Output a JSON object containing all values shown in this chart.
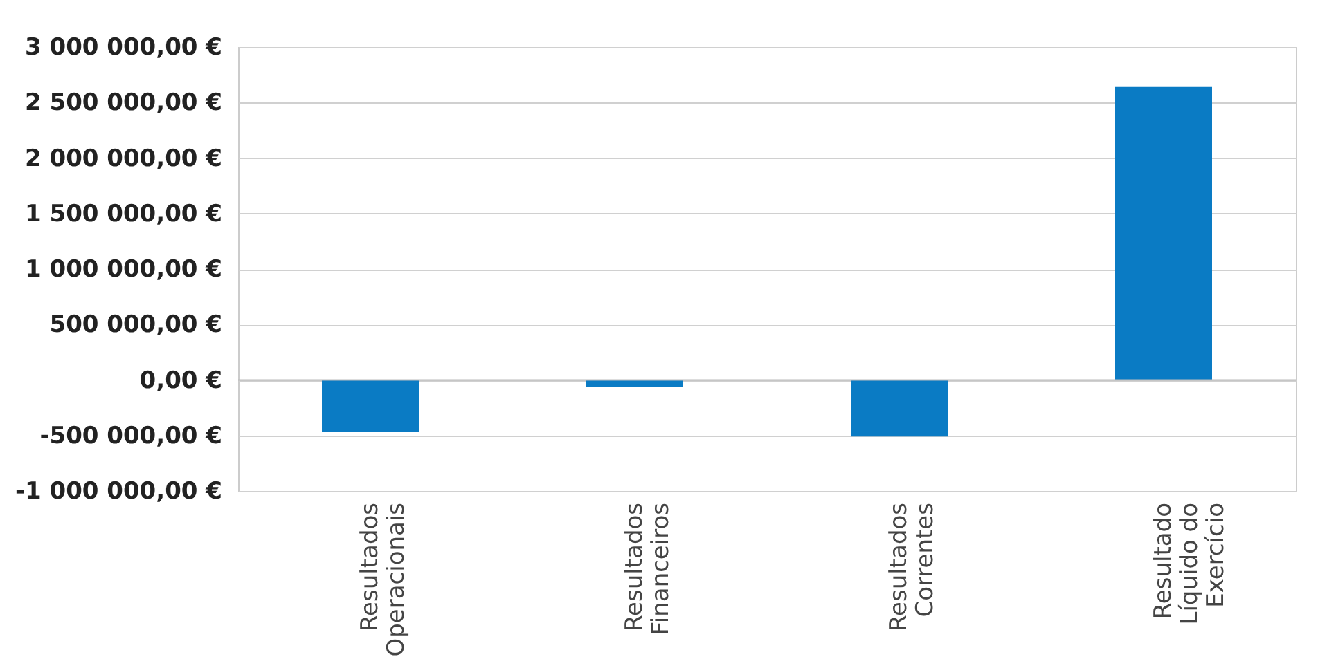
{
  "chart_data": {
    "type": "bar",
    "categories": [
      "Resultados Operacionais",
      "Resultados Financeiros",
      "Resultados Correntes",
      "Resultado Líquido do Exercício"
    ],
    "values": [
      -470000,
      -60000,
      -510000,
      2640000
    ],
    "color": "#0a7bc4",
    "ylim": [
      -1000000,
      3000000
    ],
    "yticks": [
      {
        "value": -1000000,
        "label": "-1 000 000,00 €"
      },
      {
        "value": -500000,
        "label": "-500 000,00 €"
      },
      {
        "value": 0,
        "label": "0,00 €"
      },
      {
        "value": 500000,
        "label": "500 000,00 €"
      },
      {
        "value": 1000000,
        "label": "1 000 000,00 €"
      },
      {
        "value": 1500000,
        "label": "1 500 000,00 €"
      },
      {
        "value": 2000000,
        "label": "2 000 000,00 €"
      },
      {
        "value": 2500000,
        "label": "2 500 000,00 €"
      },
      {
        "value": 3000000,
        "label": "3 000 000,00 €"
      }
    ],
    "grid": true
  }
}
